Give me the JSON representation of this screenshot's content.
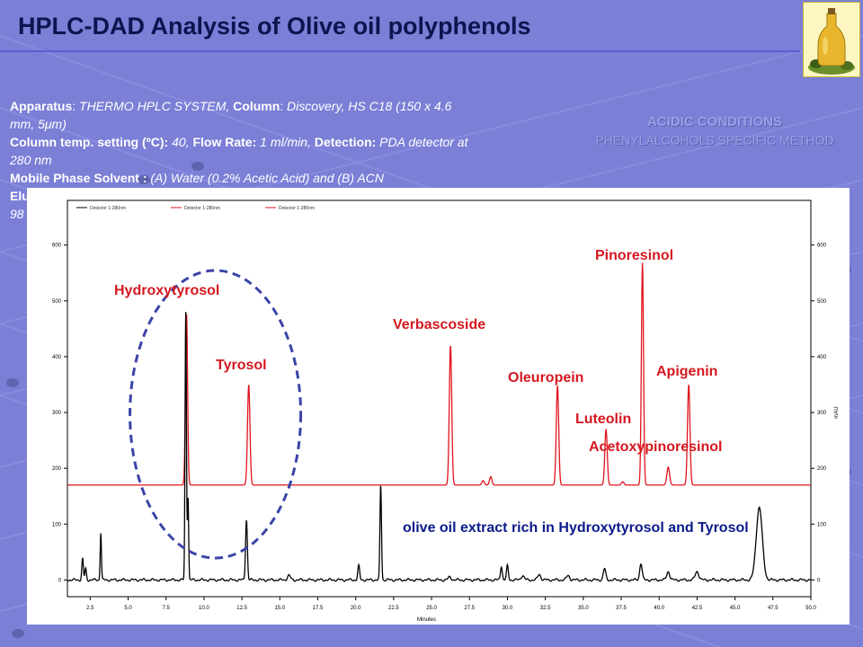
{
  "slide": {
    "title": "HPLC-DAD Analysis of Olive oil polyphenols",
    "info_lines": [
      {
        "parts": [
          [
            "b",
            "Apparatus"
          ],
          [
            "t",
            ": "
          ],
          [
            "i",
            "THERMO HPLC SYSTEM, "
          ],
          [
            "b",
            "Column"
          ],
          [
            "t",
            ": "
          ],
          [
            "i",
            "Discovery, HS C18 (150 x 4.6"
          ]
        ]
      },
      {
        "parts": [
          [
            "i",
            "mm, 5μm)"
          ]
        ]
      },
      {
        "parts": [
          [
            "b",
            "Column temp. setting (ºC): "
          ],
          [
            "i",
            "40, "
          ],
          [
            "b",
            "Flow Rate: "
          ],
          [
            "i",
            "1 ml/min, "
          ],
          [
            "b",
            "Detection: "
          ],
          [
            "i",
            "PDA detector at"
          ]
        ]
      },
      {
        "parts": [
          [
            "i",
            "280 nm"
          ]
        ]
      },
      {
        "parts": [
          [
            "b",
            "Mobile Phase Solvent : "
          ],
          [
            "i",
            "(A) Water (0.2% Acetic Acid) and (B) ACN"
          ]
        ]
      },
      {
        "parts": [
          [
            "b",
            "Elu"
          ]
        ]
      },
      {
        "parts": [
          [
            "i",
            "98"
          ]
        ]
      }
    ],
    "method_line1": "ACIDIC CONDITIONS",
    "method_line2": "PHENYLALCOHOLS SPECIFIC METHOD",
    "logo_icon": "olive-oil-bottle-icon"
  },
  "chart_data": {
    "type": "line",
    "xlabel": "Minutes",
    "ylabel": "mAU",
    "xlim": [
      1.0,
      50.0
    ],
    "ylim": [
      -30,
      680
    ],
    "x_ticks": [
      "2.5",
      "5.0",
      "7.5",
      "10.0",
      "12.5",
      "15.0",
      "17.5",
      "20.0",
      "22.5",
      "25.0",
      "27.5",
      "30.0",
      "32.5",
      "35.0",
      "37.5",
      "40.0",
      "42.5",
      "45.0",
      "47.5",
      "50.0"
    ],
    "y_ticks": [
      "0",
      "100",
      "200",
      "300",
      "400",
      "500",
      "600"
    ],
    "legend": [
      "Detector 1-280nm",
      "Detector 1-280nm",
      "Detector 1-280nm"
    ],
    "colors": {
      "standard": "#e0141e",
      "sample": "#000000",
      "label": "#d41820",
      "sample_label": "#0a1a8a",
      "ellipse": "#3b44a8"
    },
    "series": [
      {
        "baseline": 170,
        "peaks": [
          [
            8.85,
            308,
            0.07
          ],
          [
            12.95,
            180,
            0.08
          ],
          [
            26.25,
            250,
            0.08
          ],
          [
            28.4,
            8,
            0.08
          ],
          [
            28.9,
            15,
            0.08
          ],
          [
            33.3,
            178,
            0.08
          ],
          [
            36.5,
            100,
            0.08
          ],
          [
            37.6,
            6,
            0.08
          ],
          [
            38.9,
            398,
            0.07
          ],
          [
            40.6,
            32,
            0.09
          ],
          [
            41.95,
            180,
            0.08
          ]
        ]
      },
      {
        "baseline": 0,
        "peaks": [
          [
            2.0,
            38,
            0.05
          ],
          [
            2.2,
            20,
            0.05
          ],
          [
            3.2,
            85,
            0.04
          ],
          [
            8.8,
            480,
            0.045
          ],
          [
            8.95,
            150,
            0.04
          ],
          [
            12.8,
            108,
            0.06
          ],
          [
            15.6,
            8,
            0.1
          ],
          [
            20.2,
            25,
            0.06
          ],
          [
            21.65,
            170,
            0.05
          ],
          [
            26.2,
            5,
            0.1
          ],
          [
            29.6,
            25,
            0.06
          ],
          [
            30.0,
            25,
            0.06
          ],
          [
            31.0,
            8,
            0.1
          ],
          [
            32.1,
            10,
            0.1
          ],
          [
            34.0,
            8,
            0.1
          ],
          [
            36.4,
            20,
            0.08
          ],
          [
            38.8,
            30,
            0.08
          ],
          [
            40.6,
            15,
            0.1
          ],
          [
            42.5,
            15,
            0.12
          ],
          [
            46.6,
            130,
            0.2
          ]
        ]
      }
    ],
    "peak_labels": [
      {
        "text": "Hydroxytyrosol",
        "x": 8.8
      },
      {
        "text": "Tyrosol",
        "x": 12.9
      },
      {
        "text": "Verbascoside",
        "x": 26.25
      },
      {
        "text": "Oleuropein",
        "x": 33.3
      },
      {
        "text": "Luteolin",
        "x": 36.5
      },
      {
        "text": "Pinoresinol",
        "x": 38.9
      },
      {
        "text": "Apigenin",
        "x": 41.95
      },
      {
        "text": "Acetoxypinoresinol",
        "x": 40.6
      }
    ],
    "sample_label": "olive oil extract rich in Hydroxytyrosol and Tyrosol"
  }
}
